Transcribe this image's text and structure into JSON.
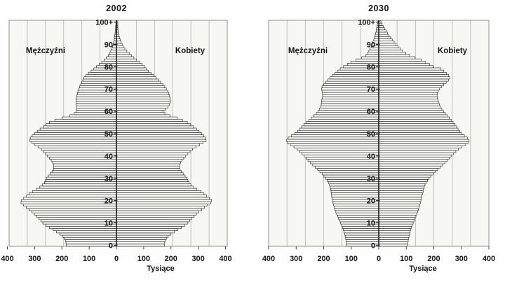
{
  "figure": {
    "description": "two population pyramids",
    "unit_label": "Tysiące"
  },
  "colors": {
    "page_bg": "#fefefe",
    "plot_bg": "#f7f7f4",
    "grid": "#b8b8b8",
    "frame": "#909090",
    "axis": "#1a1a1a",
    "bar_fill": "#fcfcf9",
    "bar_stroke": "#262626",
    "text": "#161616"
  },
  "chart_data": [
    {
      "type": "bar",
      "variant": "population-pyramid",
      "title": "2002",
      "xlabel": "Tysiące",
      "orientation": "horizontal",
      "xlim_thousands": [
        -400,
        400
      ],
      "x_tick_labels": [
        "400",
        "300",
        "200",
        "100",
        "0",
        "100",
        "200",
        "300",
        "400"
      ],
      "age_min": 0,
      "age_max": 100,
      "age_step": 1,
      "age_tick_labels": [
        "0",
        "10",
        "20",
        "30",
        "40",
        "50",
        "60",
        "70",
        "80",
        "90",
        "100+"
      ],
      "grid": true,
      "series": [
        {
          "name": "Mężczyźni",
          "side": "left",
          "unit": "thousands",
          "values_by_age": [
            184,
            185,
            187,
            191,
            198,
            208,
            220,
            233,
            246,
            259,
            270,
            277,
            284,
            293,
            301,
            310,
            321,
            331,
            341,
            350,
            348,
            340,
            330,
            320,
            308,
            293,
            281,
            271,
            264,
            260,
            257,
            250,
            243,
            236,
            231,
            230,
            231,
            234,
            239,
            246,
            253,
            260,
            267,
            275,
            287,
            299,
            310,
            318,
            316,
            309,
            300,
            290,
            280,
            269,
            258,
            246,
            226,
            200,
            172,
            155,
            148,
            146,
            146,
            147,
            148,
            148,
            147,
            145,
            143,
            141,
            138,
            135,
            131,
            127,
            123,
            119,
            112,
            103,
            93,
            83,
            73,
            63,
            54,
            45,
            37,
            30,
            25,
            21,
            17,
            14,
            12,
            10,
            8,
            7,
            6,
            5,
            4,
            3,
            3,
            2,
            2
          ]
        },
        {
          "name": "Kobiety",
          "side": "right",
          "unit": "thousands",
          "values_by_age": [
            176,
            177,
            179,
            183,
            190,
            200,
            212,
            225,
            238,
            251,
            262,
            269,
            276,
            285,
            293,
            302,
            313,
            323,
            334,
            346,
            349,
            341,
            331,
            321,
            310,
            295,
            283,
            273,
            266,
            262,
            259,
            252,
            245,
            238,
            233,
            231,
            232,
            235,
            240,
            247,
            254,
            262,
            270,
            279,
            292,
            305,
            318,
            329,
            327,
            320,
            312,
            303,
            294,
            283,
            272,
            260,
            242,
            222,
            196,
            178,
            170,
            180,
            189,
            194,
            197,
            198,
            197,
            195,
            192,
            188,
            183,
            177,
            170,
            162,
            154,
            146,
            137,
            127,
            117,
            110,
            103,
            94,
            85,
            74,
            64,
            55,
            47,
            38,
            31,
            25,
            21,
            17,
            14,
            11,
            9,
            7,
            6,
            5,
            4,
            3,
            3
          ]
        }
      ]
    },
    {
      "type": "bar",
      "variant": "population-pyramid",
      "title": "2030",
      "xlabel": "Tysiące",
      "orientation": "horizontal",
      "xlim_thousands": [
        -400,
        400
      ],
      "x_tick_labels": [
        "400",
        "300",
        "200",
        "100",
        "0",
        "100",
        "200",
        "300",
        "400"
      ],
      "age_min": 0,
      "age_max": 100,
      "age_step": 1,
      "age_tick_labels": [
        "0",
        "10",
        "20",
        "30",
        "40",
        "50",
        "60",
        "70",
        "80",
        "90",
        "100+"
      ],
      "grid": true,
      "series": [
        {
          "name": "Mężczyźni",
          "side": "left",
          "unit": "thousands",
          "values_by_age": [
            117,
            118,
            119,
            120,
            122,
            124,
            126,
            129,
            132,
            135,
            139,
            142,
            146,
            149,
            153,
            156,
            159,
            161,
            164,
            166,
            168,
            170,
            171,
            172,
            173,
            175,
            177,
            179,
            182,
            187,
            193,
            199,
            206,
            214,
            222,
            231,
            240,
            249,
            257,
            264,
            271,
            279,
            287,
            296,
            308,
            321,
            331,
            335,
            329,
            317,
            305,
            295,
            287,
            280,
            272,
            263,
            254,
            245,
            236,
            227,
            220,
            215,
            211,
            209,
            208,
            207,
            205,
            204,
            204,
            206,
            208,
            206,
            200,
            193,
            185,
            177,
            168,
            159,
            150,
            140,
            128,
            114,
            100,
            83,
            62,
            47,
            41,
            36,
            32,
            27,
            24,
            21,
            18,
            15,
            13,
            11,
            9,
            8,
            6,
            5,
            3
          ]
        },
        {
          "name": "Kobiety",
          "side": "right",
          "unit": "thousands",
          "values_by_age": [
            105,
            106,
            107,
            108,
            110,
            112,
            114,
            116,
            119,
            122,
            125,
            128,
            132,
            135,
            138,
            141,
            144,
            146,
            149,
            151,
            153,
            155,
            157,
            159,
            161,
            163,
            165,
            168,
            172,
            177,
            183,
            189,
            197,
            205,
            214,
            223,
            232,
            241,
            249,
            256,
            263,
            271,
            280,
            289,
            301,
            314,
            324,
            328,
            322,
            311,
            301,
            294,
            288,
            283,
            277,
            270,
            263,
            256,
            249,
            242,
            235,
            229,
            224,
            220,
            217,
            215,
            213,
            212,
            213,
            216,
            221,
            228,
            236,
            245,
            253,
            258,
            254,
            246,
            236,
            225,
            197,
            184,
            170,
            155,
            132,
            112,
            98,
            86,
            78,
            70,
            63,
            56,
            49,
            43,
            37,
            32,
            26,
            21,
            16,
            12,
            8
          ]
        }
      ]
    }
  ]
}
